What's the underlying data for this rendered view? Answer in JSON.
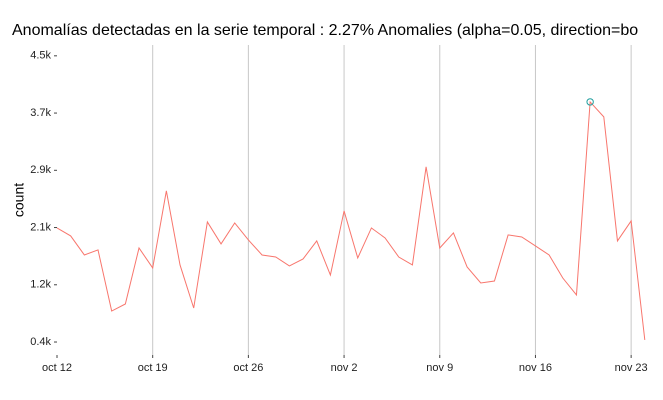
{
  "chart_data": {
    "type": "line",
    "title": "Anomalías detectadas en la serie temporal : 2.27% Anomalies (alpha=0.05, direction=bo",
    "y_label": "count",
    "categories": [
      "oct 12",
      null,
      null,
      null,
      null,
      null,
      null,
      "oct 19",
      null,
      null,
      null,
      null,
      null,
      null,
      "oct 26",
      null,
      null,
      null,
      null,
      null,
      null,
      "nov  2",
      null,
      null,
      null,
      null,
      null,
      null,
      "nov  9",
      null,
      null,
      null,
      null,
      null,
      null,
      "nov 16",
      null,
      null,
      null,
      null,
      null,
      null,
      "nov 23",
      null
    ],
    "series": [
      {
        "name": "count",
        "color": "#f8766d",
        "values": [
          2044,
          1930,
          1657,
          1729,
          854,
          955,
          1757,
          1471,
          2575,
          1514,
          897,
          2130,
          1815,
          2116,
          1872,
          1657,
          1628,
          1500,
          1600,
          1858,
          1370,
          2288,
          1614,
          2044,
          1901,
          1628,
          1514,
          2919,
          1757,
          1973,
          1485,
          1256,
          1284,
          1944,
          1915,
          1786,
          1657,
          1327,
          1084,
          3850,
          3635,
          1858,
          2145,
          439
        ]
      }
    ],
    "anomaly_color": "#1f9e9e",
    "anomaly_values": [
      null,
      null,
      null,
      null,
      null,
      null,
      null,
      null,
      null,
      null,
      null,
      null,
      null,
      null,
      null,
      null,
      null,
      null,
      null,
      null,
      null,
      null,
      null,
      null,
      null,
      null,
      null,
      null,
      null,
      null,
      null,
      null,
      null,
      null,
      null,
      null,
      null,
      null,
      null,
      3850,
      null,
      null,
      null,
      null
    ],
    "ylim": [
      224,
      4665
    ],
    "yticks": [
      {
        "value": 410,
        "label": "0.4k"
      },
      {
        "value": 1230,
        "label": "1.2k"
      },
      {
        "value": 2050,
        "label": "2.1k"
      },
      {
        "value": 2870,
        "label": "2.9k"
      },
      {
        "value": 3690,
        "label": "3.7k"
      },
      {
        "value": 4510,
        "label": "4.5k"
      }
    ],
    "grid": true
  }
}
